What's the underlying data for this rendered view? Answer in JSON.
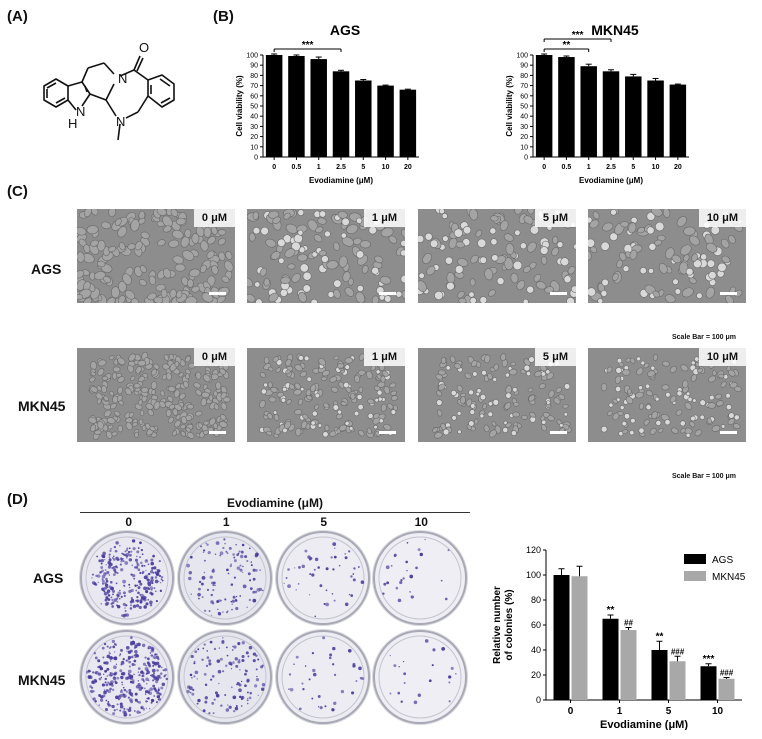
{
  "panels": {
    "a": "(A)",
    "b": "(B)",
    "c": "(C)",
    "d": "(D)"
  },
  "molecule": {
    "hetero_labels": [
      "N",
      "N",
      "O",
      "H",
      "N"
    ]
  },
  "panel_c": {
    "rows": [
      {
        "label": "AGS",
        "concentrations": [
          "0 μM",
          "1 μM",
          "5 μM",
          "10 μM"
        ],
        "scale_text": "Scale Bar = 100 μm"
      },
      {
        "label": "MKN45",
        "concentrations": [
          "0 μM",
          "1 μM",
          "5 μM",
          "10 μM"
        ],
        "scale_text": "Scale Bar = 100 μm"
      }
    ]
  },
  "panel_d": {
    "header": "Evodiamine (μM)",
    "columns": [
      "0",
      "1",
      "5",
      "10"
    ],
    "rows": [
      "AGS",
      "MKN45"
    ]
  },
  "colors": {
    "bar_black": "#000000",
    "bar_gray": "#a8a8a8",
    "crystal_violet": "#4b3d9e",
    "cell_bg": "#8d8d8d"
  },
  "chart_data": [
    {
      "type": "bar",
      "title": "AGS",
      "xlabel": "Evodiamine (μM)",
      "ylabel": "Cell viability (%)",
      "categories": [
        "0",
        "0.5",
        "1",
        "2.5",
        "5",
        "10",
        "20"
      ],
      "values": [
        100,
        99,
        96,
        84,
        75,
        70,
        66
      ],
      "errors": [
        1,
        1,
        2,
        1,
        1,
        0.5,
        0.5
      ],
      "ylim": [
        0,
        100
      ],
      "yticks": [
        "0",
        "10",
        "20",
        "30",
        "40",
        "50",
        "60",
        "70",
        "80",
        "90",
        "100"
      ],
      "significance": [
        {
          "from": "0",
          "to": "2.5",
          "label": "***"
        }
      ]
    },
    {
      "type": "bar",
      "title": "MKN45",
      "xlabel": "Evodiamine (μM)",
      "ylabel": "Cell viability (%)",
      "categories": [
        "0",
        "0.5",
        "1",
        "2.5",
        "5",
        "10",
        "20"
      ],
      "values": [
        100,
        98,
        89,
        84,
        79,
        75,
        71
      ],
      "errors": [
        1,
        1,
        2,
        1.5,
        2,
        2,
        0.5
      ],
      "ylim": [
        0,
        100
      ],
      "yticks": [
        "0",
        "10",
        "20",
        "30",
        "40",
        "50",
        "60",
        "70",
        "80",
        "90",
        "100"
      ],
      "significance": [
        {
          "from": "0",
          "to": "1",
          "label": "**"
        },
        {
          "from": "0",
          "to": "2.5",
          "label": "***"
        }
      ]
    },
    {
      "type": "bar",
      "xlabel": "Evodiamine (μM)",
      "ylabel": "Relative number of colonies (%)",
      "categories": [
        "0",
        "1",
        "5",
        "10"
      ],
      "ylim": [
        0,
        120
      ],
      "yticks": [
        "0",
        "20",
        "40",
        "60",
        "80",
        "100",
        "120"
      ],
      "legend_position": "top-right",
      "series": [
        {
          "name": "AGS",
          "color": "#000000",
          "values": [
            100,
            65,
            40,
            27
          ],
          "errors": [
            5,
            3,
            7,
            2
          ],
          "marks": [
            "",
            "**",
            "**",
            "***"
          ]
        },
        {
          "name": "MKN45",
          "color": "#a8a8a8",
          "values": [
            99,
            56,
            31,
            17
          ],
          "errors": [
            8,
            2,
            4,
            1
          ],
          "marks": [
            "",
            "##",
            "###",
            "###"
          ]
        }
      ]
    }
  ]
}
